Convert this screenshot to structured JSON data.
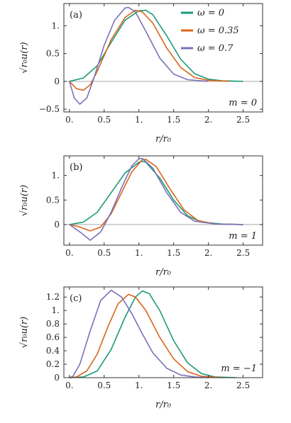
{
  "colors": {
    "green": "#1a9a78",
    "orange": "#d9661a",
    "purple": "#7b71b8"
  },
  "legend": [
    {
      "label": "ω = 0",
      "color": "#1a9a78"
    },
    {
      "label": "ω = 0.35",
      "color": "#d9661a"
    },
    {
      "label": "ω = 0.7",
      "color": "#7b71b8"
    }
  ],
  "chart_data": [
    {
      "type": "line",
      "panel_label": "(a)",
      "m_label": "m = 0",
      "xlabel": "r/r₀",
      "ylabel": "√r₀u(r)",
      "xlim": [
        -0.08,
        2.78
      ],
      "ylim": [
        -0.55,
        1.4
      ],
      "xticks": [
        0,
        0.5,
        1,
        1.5,
        2,
        2.5
      ],
      "xtick_labels": [
        "0.",
        "0.5",
        "1.",
        "1.5",
        "2.",
        "2.5"
      ],
      "yticks": [
        -0.5,
        0,
        0.5,
        1
      ],
      "ytick_labels": [
        "−0.5",
        "0",
        "0.5",
        "1."
      ],
      "zero_line": true,
      "series": [
        {
          "name": "ω = 0",
          "color": "#1a9a78",
          "x": [
            0,
            0.2,
            0.4,
            0.6,
            0.8,
            1.0,
            1.1,
            1.2,
            1.4,
            1.6,
            1.8,
            2.0,
            2.2,
            2.5
          ],
          "y": [
            0,
            0.06,
            0.28,
            0.7,
            1.1,
            1.27,
            1.28,
            1.2,
            0.82,
            0.4,
            0.14,
            0.04,
            0.01,
            0
          ]
        },
        {
          "name": "ω = 0.35",
          "color": "#d9661a",
          "x": [
            0,
            0.1,
            0.2,
            0.3,
            0.4,
            0.6,
            0.8,
            0.95,
            1.05,
            1.2,
            1.4,
            1.6,
            1.8,
            2.0,
            2.3
          ],
          "y": [
            0,
            -0.13,
            -0.16,
            -0.06,
            0.18,
            0.75,
            1.15,
            1.28,
            1.25,
            1.05,
            0.6,
            0.25,
            0.07,
            0.02,
            0
          ]
        },
        {
          "name": "ω = 0.7",
          "color": "#7b71b8",
          "x": [
            0,
            0.07,
            0.15,
            0.25,
            0.35,
            0.5,
            0.65,
            0.8,
            0.85,
            0.95,
            1.1,
            1.3,
            1.5,
            1.7,
            2.0
          ],
          "y": [
            0,
            -0.3,
            -0.41,
            -0.3,
            0.05,
            0.65,
            1.1,
            1.32,
            1.33,
            1.25,
            0.9,
            0.42,
            0.13,
            0.03,
            0
          ]
        }
      ]
    },
    {
      "type": "line",
      "panel_label": "(b)",
      "m_label": "m = 1",
      "xlabel": "r/r₀",
      "ylabel": "√r₀u(r)",
      "xlim": [
        -0.08,
        2.78
      ],
      "ylim": [
        -0.42,
        1.4
      ],
      "xticks": [
        0,
        0.5,
        1,
        1.5,
        2,
        2.5
      ],
      "xtick_labels": [
        "0.",
        "0.5",
        "1.",
        "1.5",
        "2.",
        "2.5"
      ],
      "yticks": [
        0,
        0.5,
        1
      ],
      "ytick_labels": [
        "0",
        "0.5",
        "1."
      ],
      "zero_line": true,
      "series": [
        {
          "name": "ω = 0",
          "color": "#1a9a78",
          "x": [
            0,
            0.2,
            0.4,
            0.6,
            0.8,
            1.0,
            1.05,
            1.1,
            1.3,
            1.5,
            1.7,
            1.9,
            2.2,
            2.5
          ],
          "y": [
            0,
            0.05,
            0.25,
            0.65,
            1.05,
            1.27,
            1.29,
            1.27,
            0.95,
            0.5,
            0.18,
            0.05,
            0.01,
            0
          ]
        },
        {
          "name": "ω = 0.35",
          "color": "#d9661a",
          "x": [
            0,
            0.15,
            0.3,
            0.45,
            0.6,
            0.75,
            0.9,
            1.05,
            1.1,
            1.25,
            1.45,
            1.65,
            1.85,
            2.1,
            2.5
          ],
          "y": [
            0,
            -0.05,
            -0.13,
            -0.05,
            0.22,
            0.65,
            1.08,
            1.32,
            1.33,
            1.18,
            0.72,
            0.3,
            0.08,
            0.01,
            0
          ]
        },
        {
          "name": "ω = 0.7",
          "color": "#7b71b8",
          "x": [
            0,
            0.15,
            0.3,
            0.45,
            0.6,
            0.75,
            0.9,
            1.0,
            1.05,
            1.2,
            1.4,
            1.6,
            1.8,
            2.1,
            2.5
          ],
          "y": [
            0,
            -0.15,
            -0.32,
            -0.15,
            0.25,
            0.75,
            1.2,
            1.34,
            1.35,
            1.15,
            0.65,
            0.25,
            0.07,
            0.01,
            0
          ]
        }
      ]
    },
    {
      "type": "line",
      "panel_label": "(c)",
      "m_label": "m = −1",
      "xlabel": "r/r₀",
      "ylabel": "√r₀u(r)",
      "xlim": [
        -0.08,
        2.78
      ],
      "ylim": [
        0,
        1.35
      ],
      "xticks": [
        0,
        0.5,
        1,
        1.5,
        2,
        2.5
      ],
      "xtick_labels": [
        "0.",
        "0.5",
        "1.",
        "1.5",
        "2.",
        "2.5"
      ],
      "yticks": [
        0,
        0.2,
        0.4,
        0.6,
        0.8,
        1.0,
        1.2
      ],
      "ytick_labels": [
        "0",
        "0.2",
        "0.4",
        "0.6",
        "0.8",
        "1.",
        "1.2"
      ],
      "zero_line": false,
      "series": [
        {
          "name": "ω = 0",
          "color": "#1a9a78",
          "x": [
            0,
            0.2,
            0.4,
            0.6,
            0.8,
            0.95,
            1.05,
            1.15,
            1.3,
            1.5,
            1.7,
            1.9,
            2.1,
            2.4
          ],
          "y": [
            0,
            0.01,
            0.1,
            0.42,
            0.9,
            1.2,
            1.29,
            1.25,
            1.0,
            0.55,
            0.22,
            0.06,
            0.01,
            0
          ]
        },
        {
          "name": "ω = 0.35",
          "color": "#d9661a",
          "x": [
            0,
            0.1,
            0.25,
            0.4,
            0.55,
            0.7,
            0.85,
            0.95,
            1.1,
            1.3,
            1.5,
            1.7,
            1.9,
            2.2
          ],
          "y": [
            0,
            0.01,
            0.1,
            0.35,
            0.75,
            1.1,
            1.24,
            1.2,
            1.0,
            0.6,
            0.28,
            0.09,
            0.02,
            0
          ]
        },
        {
          "name": "ω = 0.7",
          "color": "#7b71b8",
          "x": [
            0,
            0.05,
            0.15,
            0.3,
            0.45,
            0.6,
            0.75,
            0.9,
            1.05,
            1.2,
            1.4,
            1.6,
            1.8,
            2.0
          ],
          "y": [
            0,
            0.02,
            0.2,
            0.7,
            1.15,
            1.3,
            1.2,
            0.95,
            0.65,
            0.37,
            0.14,
            0.04,
            0.01,
            0
          ]
        }
      ]
    }
  ]
}
